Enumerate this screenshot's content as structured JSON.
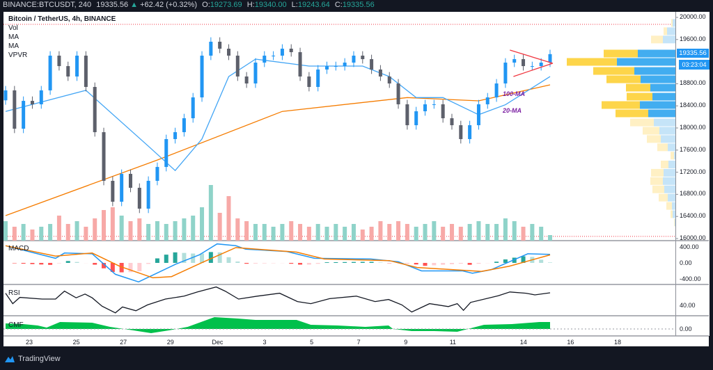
{
  "header": {
    "symbol": "BINANCE:BTCUSDT, 240",
    "last": "19335.56",
    "change": "+62.42 (+0.32%)",
    "o_label": "O:",
    "o": "19273.69",
    "h_label": "H:",
    "h": "19340.00",
    "l_label": "L:",
    "l": "19243.64",
    "c_label": "C:",
    "c": "19335.56"
  },
  "legend": {
    "title": "Bitcoin / TetherUS, 4h, BINANCE",
    "items": [
      "Vol",
      "MA",
      "MA",
      "VPVR"
    ]
  },
  "panes": {
    "macd": "MACD",
    "rsi": "RSI",
    "cmf": "CMF"
  },
  "price_axis": {
    "ticks": [
      "20000.00",
      "19600.00",
      "18800.00",
      "18400.00",
      "18000.00",
      "17600.00",
      "17200.00",
      "16800.00",
      "16400.00",
      "16000.00"
    ],
    "last_price": "19335.56",
    "countdown": "03:23:04"
  },
  "indicator_axis": {
    "macd_ticks": [
      "400.00",
      "0.00",
      "-400.00"
    ],
    "rsi_ticks": [
      "40.00"
    ],
    "cmf_ticks": [
      "0.00"
    ]
  },
  "annotations": {
    "ma100": "100-MA",
    "ma20": "20-MA"
  },
  "footer": {
    "brand": "TradingView"
  },
  "colors": {
    "up": "#2196f3",
    "down": "#5d606b",
    "vol_up": "#8fd3c9",
    "vol_down": "#f7a9a7",
    "ma20": "#42a5f5",
    "ma100": "#f57c00",
    "macd": "#2196f3",
    "signal": "#f57c00",
    "rsi": "#131722",
    "cmf": "#00c04b",
    "vp_buy": "#fdd54a",
    "vp_sell": "#42adf0",
    "vp_buy_pale": "#fff0c4",
    "vp_sell_pale": "#c5e4f8",
    "triangle": "#f0363f"
  },
  "chart_data": {
    "type": "candlestick",
    "title": "Bitcoin / TetherUS, 4h, BINANCE",
    "ylim": [
      16000,
      20000
    ],
    "first_open": 18500,
    "closes": [
      18680,
      17987,
      18490,
      18428,
      18680,
      19308,
      19119,
      18931,
      19308,
      18742,
      17924,
      17044,
      16666,
      17170,
      16918,
      16541,
      17044,
      17295,
      17799,
      17924,
      18176,
      18553,
      19308,
      19560,
      19434,
      19308,
      18931,
      18805,
      19182,
      19308,
      19308,
      19434,
      19371,
      18931,
      18742,
      19057,
      19119,
      19119,
      19182,
      19308,
      19245,
      19057,
      18931,
      18805,
      18428,
      18050,
      18302,
      18428,
      18428,
      18176,
      18050,
      17799,
      18050,
      18428,
      18553,
      18805,
      19182,
      19245,
      19119,
      19119,
      19182,
      19335.56
    ],
    "volumes": [
      35,
      25,
      30,
      20,
      25,
      30,
      45,
      30,
      35,
      25,
      40,
      55,
      60,
      45,
      35,
      40,
      30,
      35,
      30,
      35,
      40,
      45,
      60,
      100,
      50,
      80,
      40,
      35,
      30,
      30,
      25,
      30,
      35,
      30,
      25,
      30,
      25,
      30,
      25,
      30,
      20,
      25,
      35,
      30,
      35,
      30,
      25,
      30,
      35,
      25,
      30,
      25,
      30,
      35,
      30,
      30,
      40,
      35,
      25,
      30,
      25,
      10
    ],
    "ma20": [
      [
        0,
        18300
      ],
      [
        9,
        18680
      ],
      [
        16,
        17670
      ],
      [
        19,
        17230
      ],
      [
        22,
        17800
      ],
      [
        25,
        18930
      ],
      [
        28,
        19245
      ],
      [
        34,
        19120
      ],
      [
        40,
        19120
      ],
      [
        43,
        18930
      ],
      [
        46,
        18550
      ],
      [
        49,
        18550
      ],
      [
        53,
        18240
      ],
      [
        56,
        18420
      ],
      [
        61,
        18930
      ]
    ],
    "ma100": [
      [
        0,
        16415
      ],
      [
        17,
        17420
      ],
      [
        31,
        18300
      ],
      [
        45,
        18550
      ],
      [
        53,
        18490
      ],
      [
        61,
        18780
      ]
    ],
    "triangle": {
      "upper": [
        [
          56.5,
          19409
        ],
        [
          61.3,
          19170
        ]
      ],
      "lower": [
        [
          56.9,
          18931
        ],
        [
          61.3,
          19170
        ]
      ]
    },
    "range_high": 19875,
    "range_low": 16040,
    "vpvr": [
      {
        "price": 19900,
        "buy": 2,
        "sell": 4,
        "value_area": false
      },
      {
        "price": 19750,
        "buy": 5,
        "sell": 12,
        "value_area": false
      },
      {
        "price": 19600,
        "buy": 17,
        "sell": 18,
        "value_area": false
      },
      {
        "price": 19346,
        "buy": 49,
        "sell": 54,
        "value_area": true
      },
      {
        "price": 19195,
        "buy": 72,
        "sell": 84,
        "value_area": true
      },
      {
        "price": 19031,
        "buy": 59,
        "sell": 59,
        "value_area": true
      },
      {
        "price": 18880,
        "buy": 49,
        "sell": 50,
        "value_area": true
      },
      {
        "price": 18729,
        "buy": 35,
        "sell": 36,
        "value_area": true
      },
      {
        "price": 18566,
        "buy": 37,
        "sell": 33,
        "value_area": true
      },
      {
        "price": 18415,
        "buy": 55,
        "sell": 51,
        "value_area": true
      },
      {
        "price": 18264,
        "buy": 47,
        "sell": 39,
        "value_area": true
      },
      {
        "price": 18100,
        "buy": 34,
        "sell": 31,
        "value_area": false
      },
      {
        "price": 17950,
        "buy": 24,
        "sell": 23,
        "value_area": false
      },
      {
        "price": 17800,
        "buy": 20,
        "sell": 21,
        "value_area": false
      },
      {
        "price": 17650,
        "buy": 15,
        "sell": 11,
        "value_area": false
      },
      {
        "price": 17500,
        "buy": 5,
        "sell": 2,
        "value_area": false
      },
      {
        "price": 17340,
        "buy": 11,
        "sell": 10,
        "value_area": false
      },
      {
        "price": 17190,
        "buy": 18,
        "sell": 17,
        "value_area": false
      },
      {
        "price": 17040,
        "buy": 18,
        "sell": 18,
        "value_area": false
      },
      {
        "price": 16890,
        "buy": 17,
        "sell": 16,
        "value_area": false
      },
      {
        "price": 16740,
        "buy": 13,
        "sell": 11,
        "value_area": false
      },
      {
        "price": 16590,
        "buy": 8,
        "sell": 5,
        "value_area": false
      },
      {
        "price": 16440,
        "buy": 3,
        "sell": 4,
        "value_area": false
      },
      {
        "price": 16290,
        "buy": 1,
        "sell": 1,
        "value_area": false
      }
    ],
    "macd": {
      "ylim": [
        -500,
        500
      ],
      "macd": [
        [
          0,
          411
        ],
        [
          5.6,
          110
        ],
        [
          6.6,
          236
        ],
        [
          9.7,
          219
        ],
        [
          12.3,
          -274
        ],
        [
          14.9,
          -455
        ],
        [
          19.1,
          -27
        ],
        [
          21.7,
          192
        ],
        [
          23.7,
          455
        ],
        [
          25.8,
          411
        ],
        [
          26.9,
          329
        ],
        [
          31.5,
          274
        ],
        [
          34.6,
          110
        ],
        [
          40.9,
          93
        ],
        [
          44,
          27
        ],
        [
          46.6,
          -192
        ],
        [
          51.2,
          -192
        ],
        [
          52.3,
          -247
        ],
        [
          54.4,
          -164
        ],
        [
          58.5,
          219
        ],
        [
          61,
          203
        ]
      ],
      "signal": [
        [
          0,
          411
        ],
        [
          5.6,
          164
        ],
        [
          9.7,
          236
        ],
        [
          12.8,
          -82
        ],
        [
          16.5,
          -356
        ],
        [
          18.6,
          -329
        ],
        [
          22.2,
          27
        ],
        [
          25.8,
          367
        ],
        [
          32.6,
          258
        ],
        [
          35.7,
          93
        ],
        [
          43,
          55
        ],
        [
          46.1,
          -110
        ],
        [
          53.3,
          -203
        ],
        [
          56.4,
          -82
        ],
        [
          61,
          192
        ]
      ]
    },
    "rsi": {
      "values": [
        [
          0,
          69
        ],
        [
          0.8,
          44
        ],
        [
          1.6,
          59
        ],
        [
          4.1,
          55
        ],
        [
          5.6,
          55
        ],
        [
          6.6,
          74
        ],
        [
          7.9,
          58
        ],
        [
          8.9,
          67
        ],
        [
          9.7,
          58
        ],
        [
          10.8,
          38
        ],
        [
          12.3,
          22
        ],
        [
          13.1,
          36
        ],
        [
          14.6,
          27
        ],
        [
          15.9,
          41
        ],
        [
          17.9,
          55
        ],
        [
          20,
          62
        ],
        [
          21.5,
          72
        ],
        [
          23.6,
          84
        ],
        [
          24.6,
          74
        ],
        [
          26.1,
          55
        ],
        [
          28.2,
          62
        ],
        [
          30.7,
          69
        ],
        [
          32.7,
          49
        ],
        [
          34.2,
          44
        ],
        [
          36.3,
          56
        ],
        [
          39.3,
          62
        ],
        [
          41.4,
          49
        ],
        [
          42.9,
          54
        ],
        [
          44.4,
          41
        ],
        [
          45.5,
          24
        ],
        [
          47.5,
          44
        ],
        [
          49.6,
          37
        ],
        [
          50.6,
          44
        ],
        [
          51.3,
          28
        ],
        [
          52.1,
          47
        ],
        [
          55.2,
          63
        ],
        [
          56.5,
          72
        ],
        [
          58.3,
          69
        ],
        [
          59.3,
          65
        ],
        [
          61,
          70
        ]
      ]
    },
    "cmf": {
      "values": [
        [
          0,
          0.08
        ],
        [
          2,
          0.07
        ],
        [
          3.6,
          0.05
        ],
        [
          4.6,
          0.02
        ],
        [
          6.1,
          0.1
        ],
        [
          9.7,
          0.09
        ],
        [
          11.7,
          0.03
        ],
        [
          14.3,
          -0.02
        ],
        [
          16.3,
          -0.06
        ],
        [
          18.3,
          -0.02
        ],
        [
          20.4,
          0.03
        ],
        [
          23.4,
          0.17
        ],
        [
          26,
          0.15
        ],
        [
          28,
          0.13
        ],
        [
          32.6,
          0.13
        ],
        [
          34.2,
          0.06
        ],
        [
          37.2,
          0.05
        ],
        [
          40.3,
          0.03
        ],
        [
          42.9,
          0.05
        ],
        [
          43.4,
          0
        ],
        [
          45.5,
          -0.03
        ],
        [
          48,
          -0.03
        ],
        [
          50.6,
          -0.04
        ],
        [
          52.1,
          0.01
        ],
        [
          53.6,
          0.06
        ],
        [
          56.7,
          0.07
        ],
        [
          59.8,
          0.1
        ],
        [
          61,
          0.1
        ]
      ]
    },
    "x_ticks": [
      {
        "label": "23",
        "day_offset": 0
      },
      {
        "label": "25",
        "day_offset": 2
      },
      {
        "label": "27",
        "day_offset": 4
      },
      {
        "label": "29",
        "day_offset": 6
      },
      {
        "label": "Dec",
        "day_offset": 8
      },
      {
        "label": "3",
        "day_offset": 10
      },
      {
        "label": "5",
        "day_offset": 12
      },
      {
        "label": "7",
        "day_offset": 14
      },
      {
        "label": "9",
        "day_offset": 16
      },
      {
        "label": "11",
        "day_offset": 18
      },
      {
        "label": "14",
        "day_offset": 21
      },
      {
        "label": "16",
        "day_offset": 23
      },
      {
        "label": "18",
        "day_offset": 25
      }
    ]
  }
}
